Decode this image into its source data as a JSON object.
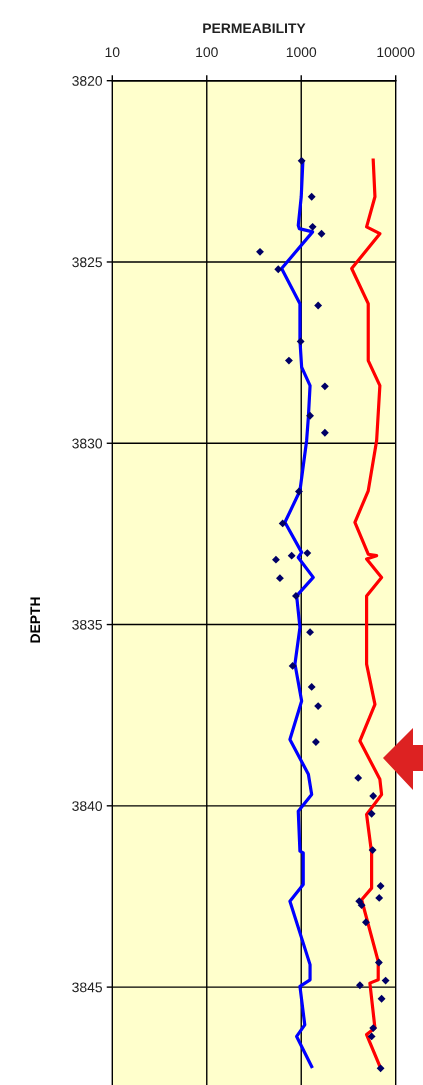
{
  "chart_data": {
    "type": "line",
    "xlabel": "PERMEABILITY",
    "ylabel": "DEPTH",
    "log": "x",
    "xlim": [
      10,
      10000
    ],
    "xticks": [
      10,
      100,
      1000,
      10000
    ],
    "ylim": [
      3847.7,
      3820
    ],
    "yticks": [
      3820,
      3825,
      3830,
      3835,
      3840,
      3845
    ],
    "grid": true,
    "series": [
      {
        "color": "#0000ff",
        "x": [
          1040,
          1000,
          930,
          953,
          1320,
          620,
          969,
          969,
          1010,
          1240,
          1190,
          1140,
          969,
          672,
          1010,
          930,
          1340,
          894,
          969,
          858,
          1010,
          759,
          1190,
          1290,
          930,
          969,
          1050,
          1050,
          759,
          1240,
          1240,
          969,
          1090,
          894,
          1290
        ],
        "values": [
          3822.24,
          3823.2,
          3823.99,
          3824.08,
          3824.17,
          3825.18,
          3826.15,
          3827.16,
          3827.9,
          3828.41,
          3829.28,
          3829.93,
          3831.31,
          3832.18,
          3833.01,
          3833.15,
          3833.7,
          3834.21,
          3835.08,
          3836.09,
          3837.11,
          3838.17,
          3839.13,
          3839.69,
          3840.15,
          3841.25,
          3841.3,
          3842.17,
          3842.63,
          3844.38,
          3844.8,
          3844.98,
          3846.04,
          3846.36,
          3847.19
        ]
      },
      {
        "color": "#ff0000",
        "x": [
          5780,
          6030,
          4920,
          6800,
          3420,
          5120,
          5120,
          6800,
          6280,
          5120,
          3700,
          5120,
          6280,
          4920,
          7090,
          4920,
          4920,
          6030,
          4180,
          6800,
          7090,
          4920,
          5560,
          5560,
          4360,
          6530,
          6530,
          5330,
          6030,
          4920,
          6800
        ],
        "values": [
          3822.19,
          3823.2,
          3824.03,
          3824.22,
          3825.18,
          3826.15,
          3827.72,
          3828.41,
          3829.93,
          3831.31,
          3832.18,
          3833.06,
          3833.1,
          3833.19,
          3833.7,
          3834.21,
          3836.09,
          3837.2,
          3838.21,
          3839.27,
          3839.69,
          3840.24,
          3841.3,
          3842.27,
          3842.59,
          3844.29,
          3844.8,
          3844.89,
          3846.13,
          3846.31,
          3847.19
        ]
      },
      {
        "type": "scatter",
        "color": "#000066",
        "marker": "diamond",
        "x": [
          1010,
          1290,
          1320,
          1640,
          366,
          571,
          1510,
          986,
          741,
          1780,
          1240,
          1780,
          946,
          636,
          1160,
          792,
          540,
          595,
          879,
          1240,
          811,
          1290,
          1510,
          1430,
          4010,
          5780,
          5560,
          5700,
          6920,
          6690,
          4110,
          4360,
          4840,
          6640,
          7820,
          4180,
          7090,
          5780,
          5560,
          6920
        ],
        "values": [
          3822.21,
          3823.2,
          3824.03,
          3824.22,
          3824.72,
          3825.2,
          3826.2,
          3827.19,
          3827.72,
          3828.43,
          3829.24,
          3829.71,
          3831.33,
          3832.21,
          3833.03,
          3833.1,
          3833.21,
          3833.72,
          3834.21,
          3835.21,
          3836.14,
          3836.72,
          3837.25,
          3838.24,
          3839.23,
          3839.73,
          3840.22,
          3841.22,
          3842.21,
          3842.54,
          3842.63,
          3842.74,
          3843.21,
          3844.32,
          3844.82,
          3844.95,
          3845.32,
          3846.13,
          3846.36,
          3847.24
        ]
      }
    ]
  }
}
